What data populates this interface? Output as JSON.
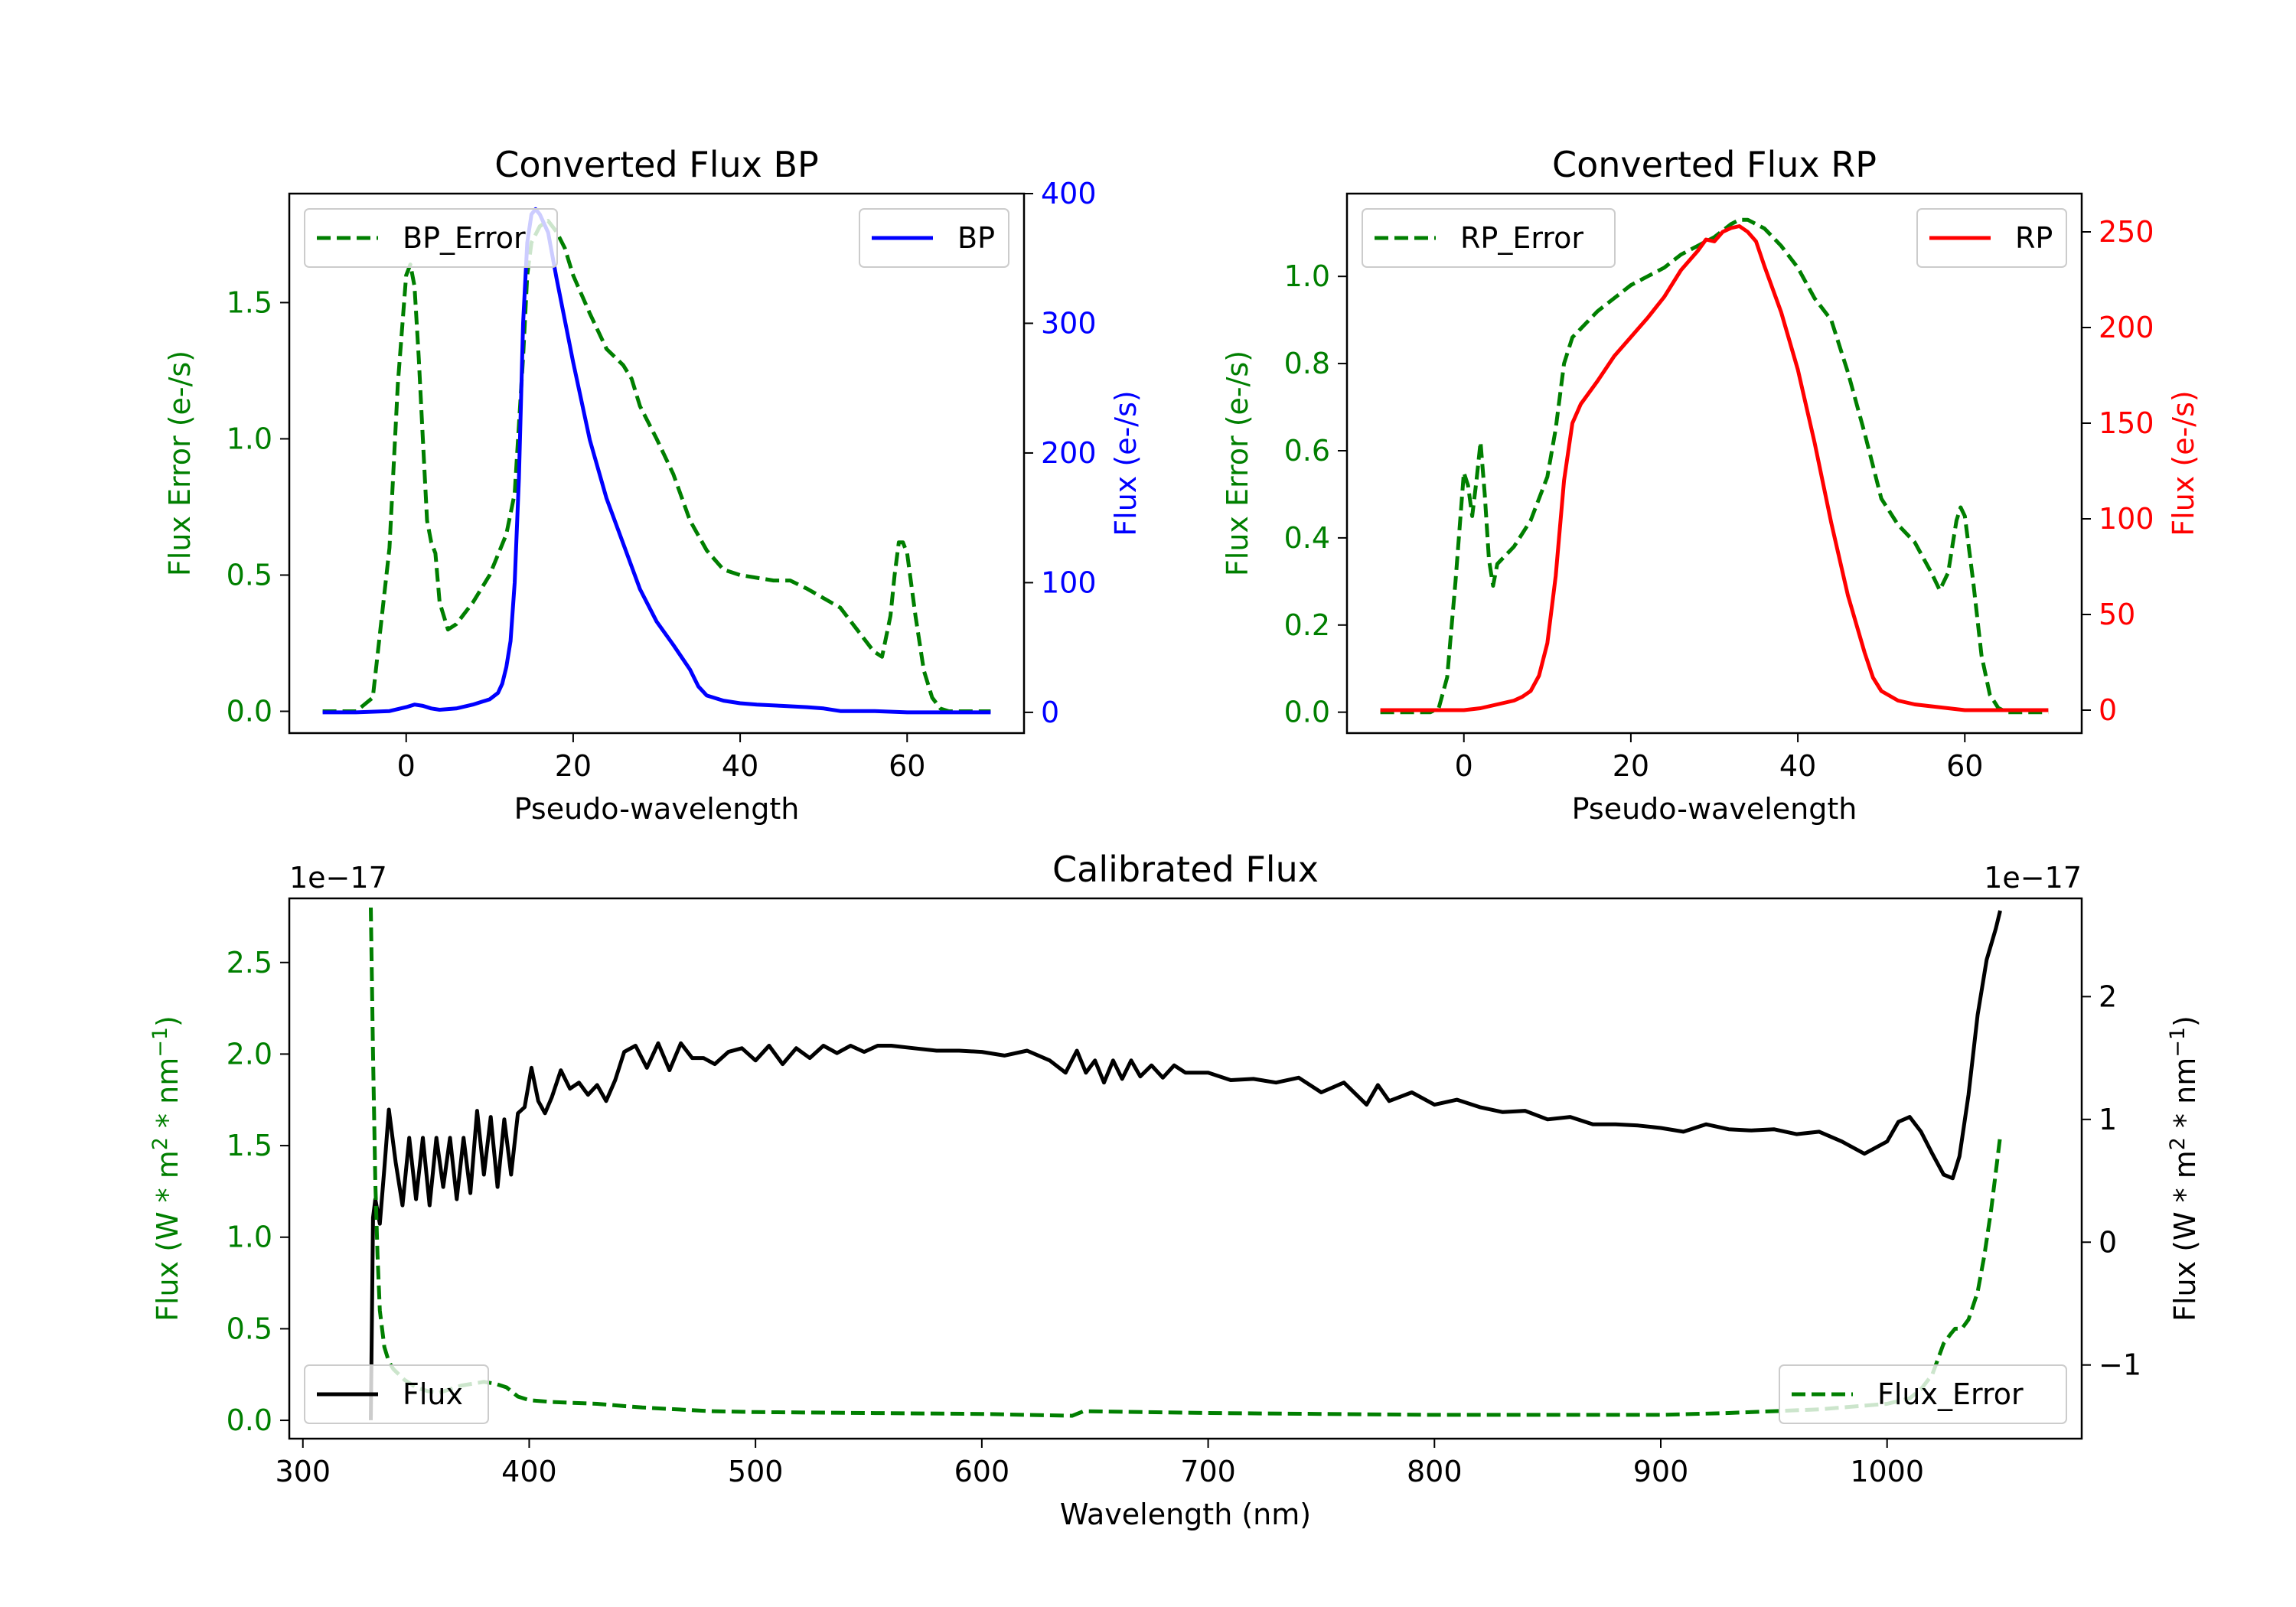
{
  "colors": {
    "bp": "#0000ff",
    "rp": "#ff0000",
    "error": "#007f00",
    "flux": "#000000",
    "axis": "#000000"
  },
  "chart_data": [
    {
      "id": "bp",
      "type": "line",
      "title": "Converted Flux BP",
      "xlabel": "Pseudo-wavelength",
      "ylabel_left": "Flux Error (e-/s)",
      "ylabel_right": "Flux (e-/s)",
      "xlim": [
        -14,
        74
      ],
      "ylim_left": [
        -0.08,
        1.9
      ],
      "ylim_right": [
        -16,
        400
      ],
      "xticks": [
        0,
        20,
        40,
        60
      ],
      "yticks_left": [
        0.0,
        0.5,
        1.0,
        1.5
      ],
      "yticks_right": [
        0,
        100,
        200,
        300,
        400
      ],
      "left_axis_color": "error",
      "right_axis_color": "bp",
      "series": [
        {
          "name": "BP_Error",
          "axis": "left",
          "style": "dashed",
          "color": "error",
          "x": [
            -10,
            -6,
            -4,
            -2,
            -1,
            0,
            0.5,
            1,
            1.5,
            2,
            2.5,
            3,
            3.5,
            4,
            5,
            6,
            8,
            10,
            12,
            13,
            14,
            14.5,
            15,
            16,
            17,
            18,
            19,
            20,
            22,
            24,
            26,
            27,
            28,
            30,
            32,
            34,
            36,
            38,
            40,
            44,
            46,
            48,
            52,
            54,
            56,
            57,
            58,
            58.5,
            59,
            59.5,
            60,
            61,
            62,
            63,
            64,
            65,
            66,
            70
          ],
          "y": [
            0.0,
            0.0,
            0.05,
            0.6,
            1.2,
            1.6,
            1.64,
            1.56,
            1.3,
            1.0,
            0.7,
            0.62,
            0.58,
            0.4,
            0.3,
            0.32,
            0.4,
            0.5,
            0.65,
            0.8,
            1.3,
            1.6,
            1.72,
            1.78,
            1.8,
            1.76,
            1.7,
            1.6,
            1.46,
            1.33,
            1.27,
            1.22,
            1.12,
            1.0,
            0.87,
            0.7,
            0.59,
            0.52,
            0.5,
            0.48,
            0.48,
            0.45,
            0.38,
            0.3,
            0.22,
            0.2,
            0.35,
            0.5,
            0.62,
            0.62,
            0.58,
            0.35,
            0.15,
            0.05,
            0.01,
            0.0,
            0.0,
            0.0
          ]
        },
        {
          "name": "BP",
          "axis": "right",
          "style": "solid",
          "color": "bp",
          "x": [
            -10,
            -6,
            -2,
            0,
            1,
            2,
            3,
            4,
            6,
            8,
            9,
            10,
            11,
            11.5,
            12,
            12.5,
            13,
            13.5,
            14,
            14.5,
            15,
            15.5,
            16,
            17,
            18,
            20,
            22,
            24,
            26,
            28,
            30,
            32,
            34,
            35,
            36,
            38,
            40,
            42,
            45,
            48,
            50,
            52,
            56,
            60,
            65,
            70
          ],
          "y": [
            0,
            0,
            1,
            4,
            6,
            5,
            3,
            2,
            3,
            6,
            8,
            10,
            15,
            22,
            35,
            55,
            100,
            180,
            300,
            362,
            384,
            388,
            384,
            370,
            335,
            270,
            210,
            165,
            130,
            95,
            70,
            52,
            33,
            20,
            13,
            9,
            7,
            6,
            5,
            4,
            3,
            1,
            1,
            0,
            0,
            0
          ]
        }
      ],
      "legend": [
        {
          "label": "BP_Error",
          "position": "upper-left",
          "style": "dashed",
          "color": "error"
        },
        {
          "label": "BP",
          "position": "upper-right",
          "style": "solid",
          "color": "bp"
        }
      ]
    },
    {
      "id": "rp",
      "type": "line",
      "title": "Converted Flux RP",
      "xlabel": "Pseudo-wavelength",
      "ylabel_left": "Flux Error (e-/s)",
      "ylabel_right": "Flux (e-/s)",
      "xlim": [
        -14,
        74
      ],
      "ylim_left": [
        -0.048,
        1.19
      ],
      "ylim_right": [
        -12,
        270
      ],
      "xticks": [
        0,
        20,
        40,
        60
      ],
      "yticks_left": [
        0.0,
        0.2,
        0.4,
        0.6,
        0.8,
        1.0
      ],
      "yticks_right": [
        0,
        50,
        100,
        150,
        200,
        250
      ],
      "left_axis_color": "error",
      "right_axis_color": "rp",
      "series": [
        {
          "name": "RP_Error",
          "axis": "left",
          "style": "dashed",
          "color": "error",
          "x": [
            -10,
            -4,
            -3,
            -2,
            -1,
            0,
            0.5,
            1,
            1.5,
            2,
            2.5,
            3,
            3.5,
            4,
            5,
            6,
            8,
            10,
            11,
            12,
            13,
            14,
            16,
            18,
            20,
            22,
            24,
            26,
            28,
            30,
            32,
            33,
            34,
            36,
            38,
            40,
            42,
            44,
            46,
            48,
            50,
            52,
            54,
            56,
            57,
            58,
            58.5,
            59,
            59.5,
            60,
            61,
            62,
            63,
            64,
            65,
            70
          ],
          "y": [
            0.0,
            0.0,
            0.01,
            0.08,
            0.3,
            0.55,
            0.52,
            0.45,
            0.53,
            0.62,
            0.5,
            0.35,
            0.29,
            0.34,
            0.36,
            0.38,
            0.44,
            0.54,
            0.65,
            0.8,
            0.86,
            0.88,
            0.92,
            0.95,
            0.98,
            1.0,
            1.02,
            1.05,
            1.07,
            1.09,
            1.12,
            1.13,
            1.13,
            1.11,
            1.07,
            1.02,
            0.95,
            0.9,
            0.78,
            0.64,
            0.49,
            0.43,
            0.39,
            0.32,
            0.28,
            0.32,
            0.38,
            0.44,
            0.47,
            0.45,
            0.3,
            0.13,
            0.04,
            0.01,
            0.0,
            0.0
          ]
        },
        {
          "name": "RP",
          "axis": "right",
          "style": "solid",
          "color": "rp",
          "x": [
            -10,
            -4,
            0,
            2,
            4,
            6,
            7,
            8,
            9,
            10,
            11,
            12,
            13,
            14,
            16,
            18,
            20,
            22,
            24,
            26,
            28,
            29,
            30,
            31,
            32,
            33,
            34,
            35,
            36,
            38,
            40,
            42,
            44,
            46,
            48,
            49,
            50,
            52,
            54,
            56,
            58,
            60,
            62,
            64,
            66,
            70
          ],
          "y": [
            0,
            0,
            0,
            1,
            3,
            5,
            7,
            10,
            18,
            35,
            70,
            120,
            150,
            160,
            172,
            185,
            195,
            205,
            216,
            230,
            240,
            246,
            245,
            250,
            252,
            253,
            250,
            245,
            232,
            208,
            178,
            140,
            98,
            60,
            30,
            17,
            10,
            5,
            3,
            2,
            1,
            0,
            0,
            0,
            0,
            0
          ]
        }
      ],
      "legend": [
        {
          "label": "RP_Error",
          "position": "upper-left",
          "style": "dashed",
          "color": "error"
        },
        {
          "label": "RP",
          "position": "upper-right",
          "style": "solid",
          "color": "rp"
        }
      ]
    },
    {
      "id": "cal",
      "type": "line",
      "title": "Calibrated Flux",
      "xlabel": "Wavelength (nm)",
      "ylabel_left": "Flux (W * m$^2$ * nm$^{-1}$)",
      "ylabel_left_parts": [
        "Flux (W * m",
        "2",
        " * nm",
        "−1",
        ")"
      ],
      "ylabel_right_parts": [
        "Flux (W * m",
        "2",
        " * nm",
        "−1",
        ")"
      ],
      "offset_left": "1e−17",
      "offset_right": "1e−17",
      "xlim": [
        294,
        1086
      ],
      "ylim_left": [
        -0.1,
        2.85
      ],
      "ylim_right": [
        -1.6,
        2.8
      ],
      "xticks": [
        300,
        400,
        500,
        600,
        700,
        800,
        900,
        1000
      ],
      "yticks_left": [
        0.0,
        0.5,
        1.0,
        1.5,
        2.0,
        2.5
      ],
      "yticks_right": [
        -1,
        0,
        1,
        2
      ],
      "left_axis_color": "error",
      "right_axis_color": "flux",
      "series": [
        {
          "name": "Flux",
          "axis": "right",
          "style": "solid",
          "color": "flux",
          "x": [
            330,
            331,
            332,
            334,
            336,
            338,
            341,
            344,
            347,
            350,
            353,
            356,
            359,
            362,
            365,
            368,
            371,
            374,
            377,
            380,
            383,
            386,
            389,
            392,
            395,
            398,
            401,
            404,
            407,
            410,
            414,
            418,
            422,
            426,
            430,
            434,
            438,
            442,
            447,
            452,
            457,
            462,
            467,
            472,
            477,
            482,
            488,
            494,
            500,
            506,
            512,
            518,
            524,
            530,
            536,
            542,
            548,
            554,
            560,
            570,
            580,
            590,
            600,
            610,
            620,
            630,
            637,
            642,
            646,
            650,
            654,
            658,
            662,
            666,
            670,
            675,
            680,
            685,
            690,
            700,
            710,
            720,
            730,
            740,
            750,
            760,
            770,
            775,
            780,
            790,
            800,
            810,
            820,
            830,
            840,
            850,
            860,
            870,
            880,
            890,
            900,
            910,
            920,
            930,
            940,
            950,
            960,
            970,
            980,
            990,
            1000,
            1005,
            1010,
            1015,
            1020,
            1025,
            1029,
            1032,
            1036,
            1040,
            1044,
            1048,
            1050
          ],
          "y": [
            -1.45,
            0.2,
            0.35,
            0.15,
            0.6,
            1.08,
            0.65,
            0.3,
            0.85,
            0.35,
            0.85,
            0.3,
            0.85,
            0.45,
            0.85,
            0.35,
            0.85,
            0.4,
            1.07,
            0.55,
            1.02,
            0.45,
            1.0,
            0.55,
            1.05,
            1.1,
            1.42,
            1.15,
            1.05,
            1.18,
            1.4,
            1.25,
            1.3,
            1.2,
            1.28,
            1.15,
            1.32,
            1.55,
            1.6,
            1.42,
            1.62,
            1.4,
            1.62,
            1.5,
            1.5,
            1.45,
            1.55,
            1.58,
            1.48,
            1.6,
            1.45,
            1.58,
            1.5,
            1.6,
            1.54,
            1.6,
            1.55,
            1.6,
            1.6,
            1.58,
            1.56,
            1.56,
            1.55,
            1.52,
            1.56,
            1.48,
            1.38,
            1.56,
            1.38,
            1.48,
            1.3,
            1.48,
            1.33,
            1.48,
            1.35,
            1.44,
            1.34,
            1.44,
            1.38,
            1.38,
            1.32,
            1.33,
            1.3,
            1.34,
            1.22,
            1.3,
            1.12,
            1.28,
            1.15,
            1.22,
            1.12,
            1.16,
            1.1,
            1.06,
            1.07,
            1.0,
            1.02,
            0.96,
            0.96,
            0.95,
            0.93,
            0.9,
            0.96,
            0.92,
            0.91,
            0.92,
            0.88,
            0.9,
            0.82,
            0.72,
            0.82,
            0.98,
            1.02,
            0.9,
            0.72,
            0.55,
            0.52,
            0.7,
            1.2,
            1.85,
            2.3,
            2.55,
            2.7
          ]
        },
        {
          "name": "Flux_Error",
          "axis": "left",
          "style": "dashed",
          "color": "error",
          "x": [
            330,
            331,
            332,
            333,
            334,
            336,
            338,
            340,
            345,
            350,
            355,
            360,
            365,
            370,
            375,
            380,
            385,
            390,
            395,
            400,
            410,
            430,
            450,
            480,
            500,
            550,
            600,
            620,
            640,
            645,
            700,
            750,
            800,
            850,
            900,
            930,
            950,
            970,
            990,
            1000,
            1010,
            1015,
            1020,
            1025,
            1028,
            1030,
            1033,
            1036,
            1040,
            1043,
            1046,
            1048,
            1050
          ],
          "y": [
            2.8,
            2.0,
            1.3,
            0.9,
            0.6,
            0.4,
            0.32,
            0.28,
            0.22,
            0.18,
            0.16,
            0.15,
            0.17,
            0.19,
            0.2,
            0.21,
            0.2,
            0.18,
            0.13,
            0.11,
            0.1,
            0.09,
            0.07,
            0.05,
            0.045,
            0.04,
            0.035,
            0.03,
            0.025,
            0.05,
            0.04,
            0.035,
            0.03,
            0.03,
            0.03,
            0.04,
            0.05,
            0.06,
            0.08,
            0.09,
            0.12,
            0.17,
            0.25,
            0.42,
            0.47,
            0.5,
            0.5,
            0.55,
            0.7,
            0.9,
            1.15,
            1.35,
            1.55
          ]
        }
      ],
      "legend": [
        {
          "label": "Flux",
          "position": "lower-left",
          "style": "solid",
          "color": "flux"
        },
        {
          "label": "Flux_Error",
          "position": "lower-right",
          "style": "dashed",
          "color": "error"
        }
      ]
    }
  ]
}
